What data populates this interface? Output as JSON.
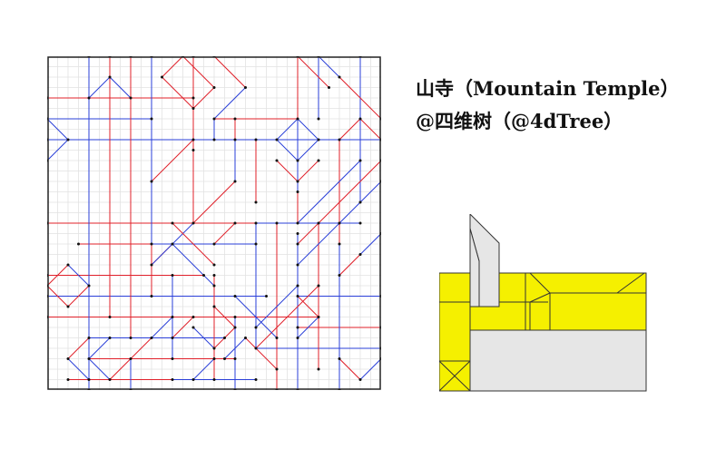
{
  "title": {
    "line1": "山寺（Mountain Temple）",
    "line2": "@四维树（@4dTree）"
  },
  "crease_pattern": {
    "grid_divisions": 32,
    "colors": {
      "grid": "#e2e2e2",
      "border": "#222222",
      "mountain": "#e0202a",
      "valley": "#2a3fd8",
      "vertex": "#111111"
    }
  },
  "folded_model": {
    "colors": {
      "yellow": "#f5f000",
      "gray": "#e6e6e6",
      "outline": "#333333"
    }
  }
}
